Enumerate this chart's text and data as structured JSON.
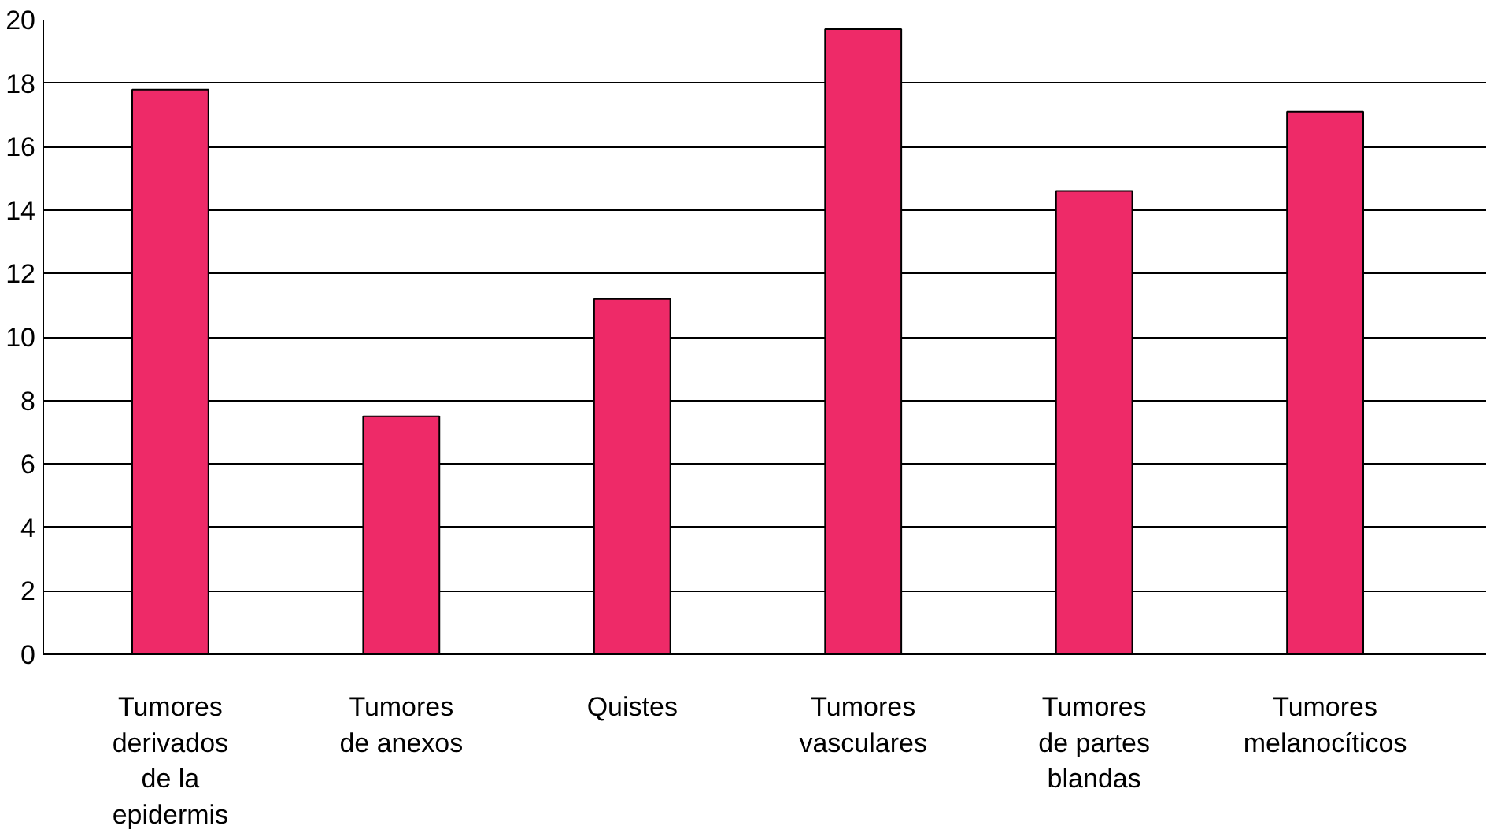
{
  "chart_data": {
    "type": "bar",
    "categories": [
      "Tumores\nderivados\nde la\nepidermis",
      "Tumores\nde anexos",
      "Quistes",
      "Tumores\nvasculares",
      "Tumores\nde partes\nblandas",
      "Tumores\nmelanocíticos"
    ],
    "values": [
      17.8,
      7.5,
      11.2,
      19.7,
      14.6,
      17.1
    ],
    "color": "#ee2a68",
    "ylim": [
      0,
      20
    ],
    "yticks": [
      0,
      2,
      4,
      6,
      8,
      10,
      12,
      14,
      16,
      18,
      20
    ],
    "grid": "y"
  }
}
